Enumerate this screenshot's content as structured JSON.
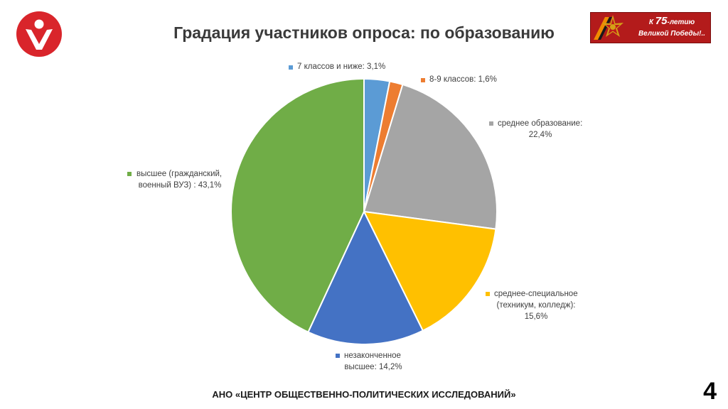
{
  "slide": {
    "title": "Градация участников опроса: по образованию",
    "footer": "АНО «ЦЕНТР ОБЩЕСТВЕННО-ПОЛИТИЧЕСКИХ ИССЛЕДОВАНИЙ»",
    "page_number": "4"
  },
  "banner": {
    "line1_prefix": "К ",
    "line1_number": "75",
    "line1_suffix": "-летию",
    "line2": "Великой Победы!.."
  },
  "colors": {
    "logo": "#d9252b",
    "banner": "#b31b1b"
  },
  "chart_data": {
    "type": "pie",
    "title": "",
    "start_angle_deg": 0,
    "direction": "clockwise",
    "slices": [
      {
        "label_lines": [
          "7 классов и ниже: 3,1%"
        ],
        "value": 3.1,
        "color": "#5b9bd5"
      },
      {
        "label_lines": [
          "8-9 классов: 1,6%"
        ],
        "value": 1.6,
        "color": "#ed7d31"
      },
      {
        "label_lines": [
          "среднее образование:",
          "22,4%"
        ],
        "value": 22.4,
        "color": "#a5a5a5"
      },
      {
        "label_lines": [
          "среднее-специальное",
          "(техникум, колледж):",
          "15,6%"
        ],
        "value": 15.6,
        "color": "#ffc000"
      },
      {
        "label_lines": [
          "незаконченное",
          "высшее: 14,2%"
        ],
        "value": 14.2,
        "color": "#4472c4"
      },
      {
        "label_lines": [
          "высшее (гражданский,",
          "военный ВУЗ) : 43,1%"
        ],
        "value": 43.1,
        "color": "#70ad47"
      }
    ]
  }
}
